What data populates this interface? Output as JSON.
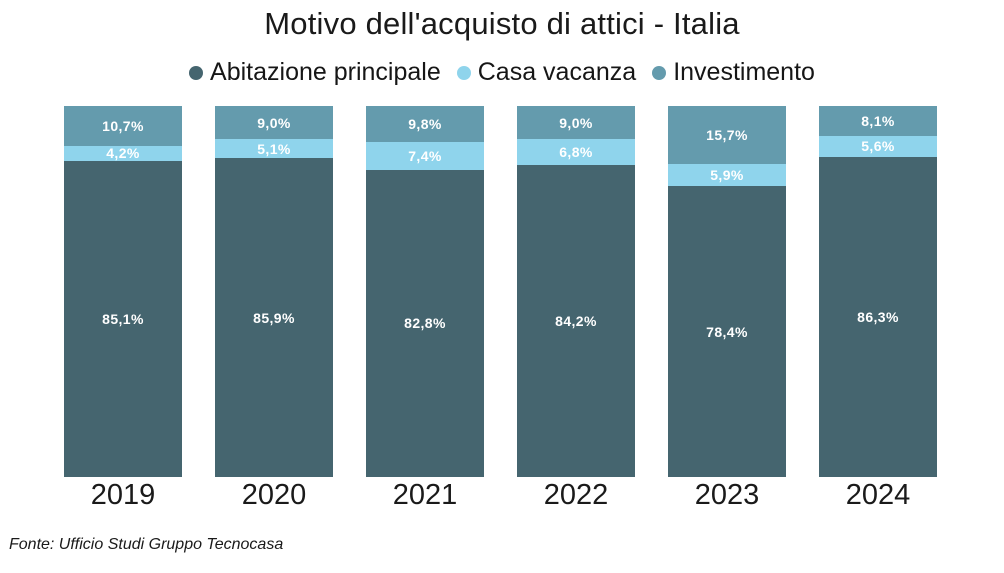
{
  "chart_data": {
    "type": "bar",
    "stacked": true,
    "orientation": "vertical",
    "title": "Motivo dell'acquisto di attici - Italia",
    "categories": [
      "2019",
      "2020",
      "2021",
      "2022",
      "2023",
      "2024"
    ],
    "series": [
      {
        "name": "Abitazione principale",
        "color": "#45656F",
        "values": [
          85.1,
          85.9,
          82.8,
          84.2,
          78.4,
          86.3
        ]
      },
      {
        "name": "Casa vacanza",
        "color": "#8FD4EC",
        "values": [
          4.2,
          5.1,
          7.4,
          6.8,
          5.9,
          5.6
        ]
      },
      {
        "name": "Investimento",
        "color": "#649BAD",
        "values": [
          10.7,
          9.0,
          9.8,
          9.0,
          15.7,
          8.1
        ]
      }
    ],
    "value_label_format": "comma-decimal-percent",
    "value_label_color": "#FFFFFF",
    "ylim": [
      0,
      100
    ],
    "grid": false,
    "legend_position": "top",
    "background": "#FFFFFF",
    "source": "Fonte: Ufficio Studi Gruppo Tecnocasa"
  }
}
